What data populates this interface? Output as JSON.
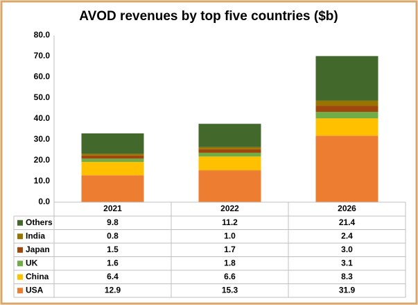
{
  "chart_data": {
    "type": "stacked_bar",
    "title": "AVOD revenues by top five countries ($b)",
    "categories": [
      "2021",
      "2022",
      "2026"
    ],
    "series": [
      {
        "name": "USA",
        "color": "#ed7d31",
        "values": [
          12.9,
          15.3,
          31.9
        ],
        "value_labels": [
          "12.9",
          "15.3",
          "31.9"
        ]
      },
      {
        "name": "China",
        "color": "#ffc000",
        "values": [
          6.4,
          6.6,
          8.3
        ],
        "value_labels": [
          "6.4",
          "6.6",
          "8.3"
        ]
      },
      {
        "name": "UK",
        "color": "#70ad47",
        "values": [
          1.6,
          1.8,
          3.1
        ],
        "value_labels": [
          "1.6",
          "1.8",
          "3.1"
        ]
      },
      {
        "name": "Japan",
        "color": "#9e480e",
        "values": [
          1.5,
          1.7,
          3.0
        ],
        "value_labels": [
          "1.5",
          "1.7",
          "3.0"
        ]
      },
      {
        "name": "India",
        "color": "#997300",
        "values": [
          0.8,
          1.0,
          2.4
        ],
        "value_labels": [
          "0.8",
          "1.0",
          "2.4"
        ]
      },
      {
        "name": "Others",
        "color": "#43682b",
        "values": [
          9.8,
          11.2,
          21.4
        ],
        "value_labels": [
          "9.8",
          "11.2",
          "21.4"
        ]
      }
    ],
    "ylim": [
      0,
      80
    ],
    "yticks": [
      {
        "value": 0,
        "label": "0.0"
      },
      {
        "value": 10,
        "label": "10.0"
      },
      {
        "value": 20,
        "label": "20.0"
      },
      {
        "value": 30,
        "label": "30.0"
      },
      {
        "value": 40,
        "label": "40.0"
      },
      {
        "value": 50,
        "label": "50.0"
      },
      {
        "value": 60,
        "label": "60.0"
      },
      {
        "value": 70,
        "label": "70.0"
      },
      {
        "value": 80,
        "label": "80.0"
      }
    ],
    "grid": false
  }
}
